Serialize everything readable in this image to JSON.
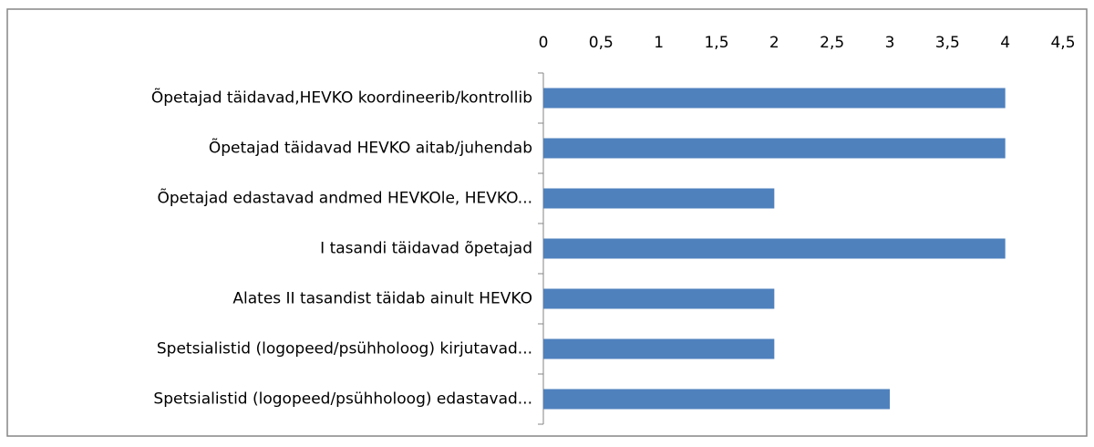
{
  "chart_data": {
    "type": "bar",
    "orientation": "horizontal",
    "categories": [
      "Õpetajad täidavad,HEVKO koordineerib/kontrollib",
      "Õpetajad täidavad HEVKO aitab/juhendab",
      "Õpetajad edastavad andmed HEVKOle, HEVKO...",
      "I tasandi täidavad õpetajad",
      "Alates II tasandist täidab ainult HEVKO",
      "Spetsialistid (logopeed/psühholoog) kirjutavad...",
      "Spetsialistid (logopeed/psühholoog) edastavad..."
    ],
    "values": [
      4,
      4,
      2,
      4,
      2,
      2,
      3
    ],
    "color": "#4f81bd",
    "xlim": [
      0,
      4.5
    ],
    "xticks": [
      0,
      {
        "value": 0.5,
        "label": "0,5"
      },
      1,
      {
        "value": 1.5,
        "label": "1,5"
      },
      2,
      {
        "value": 2.5,
        "label": "2,5"
      },
      3,
      {
        "value": 3.5,
        "label": "3,5"
      },
      4,
      {
        "value": 4.5,
        "label": "4,5"
      }
    ],
    "grid": false
  }
}
